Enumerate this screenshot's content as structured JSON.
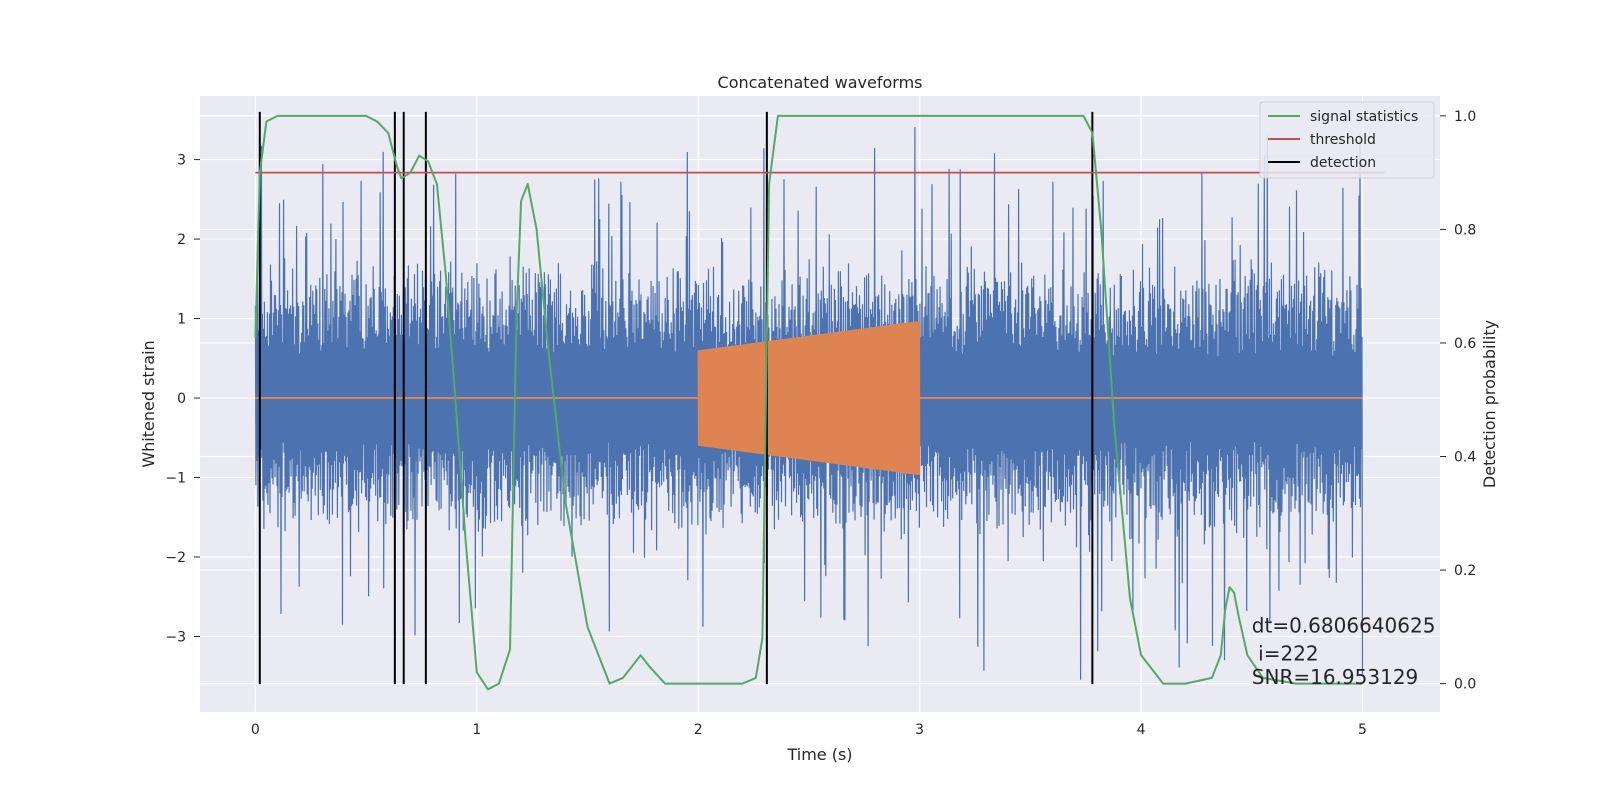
{
  "chart_data": {
    "type": "line",
    "title": "Concatenated waveforms",
    "xlabel": "Time (s)",
    "ylabel": "Whitened strain",
    "ylabel_right": "Detection probability",
    "xlim": [
      -0.25,
      5.35
    ],
    "ylim": [
      -3.95,
      3.8
    ],
    "ylim_right": [
      -0.05,
      1.035
    ],
    "x_ticks": [
      0,
      1,
      2,
      3,
      4,
      5
    ],
    "x_tick_labels": [
      "0",
      "1",
      "2",
      "3",
      "4",
      "5"
    ],
    "y_ticks": [
      -3,
      -2,
      -1,
      0,
      1,
      2,
      3
    ],
    "y_tick_labels": [
      "−3",
      "−2",
      "−1",
      "0",
      "1",
      "2",
      "3"
    ],
    "y_right_ticks": [
      0.0,
      0.2,
      0.4,
      0.6,
      0.8,
      1.0
    ],
    "y_right_tick_labels": [
      "0.0",
      "0.2",
      "0.4",
      "0.6",
      "0.8",
      "1.0"
    ],
    "grid": true,
    "legend_position": "top-right",
    "colors": {
      "strain": "#4c72b0",
      "injection": "#dd8452",
      "signal_statistics": "#55a868",
      "threshold": "#c44e52",
      "detection": "#000000",
      "plot_background": "#eaeaf2",
      "grid": "#ffffff"
    },
    "series": [
      {
        "name": "signal statistics",
        "axis": "right",
        "x": [
          0.0,
          0.02,
          0.05,
          0.1,
          0.2,
          0.3,
          0.4,
          0.5,
          0.55,
          0.6,
          0.64,
          0.66,
          0.7,
          0.74,
          0.78,
          0.82,
          0.86,
          0.9,
          0.95,
          1.0,
          1.05,
          1.1,
          1.15,
          1.18,
          1.2,
          1.23,
          1.27,
          1.32,
          1.4,
          1.5,
          1.6,
          1.66,
          1.7,
          1.74,
          1.78,
          1.85,
          2.0,
          2.1,
          2.2,
          2.26,
          2.29,
          2.32,
          2.36,
          2.45,
          2.8,
          3.2,
          3.6,
          3.74,
          3.78,
          3.82,
          3.88,
          3.95,
          4.0,
          4.1,
          4.2,
          4.32,
          4.36,
          4.38,
          4.4,
          4.42,
          4.44,
          4.48,
          4.55,
          4.7,
          4.9,
          5.0
        ],
        "y": [
          0.61,
          0.9,
          0.99,
          1.0,
          1.0,
          1.0,
          1.0,
          1.0,
          0.99,
          0.97,
          0.91,
          0.89,
          0.9,
          0.93,
          0.92,
          0.88,
          0.72,
          0.52,
          0.25,
          0.02,
          -0.01,
          0.0,
          0.06,
          0.65,
          0.85,
          0.88,
          0.8,
          0.6,
          0.32,
          0.1,
          0.0,
          0.01,
          0.03,
          0.05,
          0.03,
          0.0,
          0.0,
          0.0,
          0.0,
          0.01,
          0.08,
          0.88,
          1.0,
          1.0,
          1.0,
          1.0,
          1.0,
          1.0,
          0.97,
          0.8,
          0.45,
          0.15,
          0.05,
          0.0,
          0.0,
          0.01,
          0.05,
          0.13,
          0.17,
          0.16,
          0.12,
          0.05,
          0.01,
          0.0,
          0.0,
          0.0
        ]
      },
      {
        "name": "threshold",
        "axis": "right",
        "x": [
          0.0,
          5.1
        ],
        "y": [
          0.9,
          0.9
        ]
      },
      {
        "name": "detection",
        "type": "vlines",
        "axis": "left",
        "x": [
          0.02,
          0.63,
          0.67,
          0.77,
          2.31,
          3.78
        ],
        "y_range": [
          -3.6,
          3.6
        ]
      }
    ],
    "strain": {
      "axis": "left",
      "x_range": [
        0.0,
        5.0
      ],
      "envelope": {
        "core": 0.7,
        "typical": 1.8,
        "peak": 3.6
      }
    },
    "injection": {
      "axis": "left",
      "x_range": [
        2.0,
        3.0
      ],
      "amplitude_start": 0.6,
      "amplitude_end": 0.97,
      "baseline_x_range": [
        0.0,
        5.0
      ]
    },
    "annotations": [
      {
        "text": "dt=0.6806640625",
        "x": 4.5,
        "y": -2.95
      },
      {
        "text": " i=222",
        "x": 4.5,
        "y": -3.3
      },
      {
        "text": "SNR=16.953129",
        "x": 4.5,
        "y": -3.6
      }
    ]
  }
}
